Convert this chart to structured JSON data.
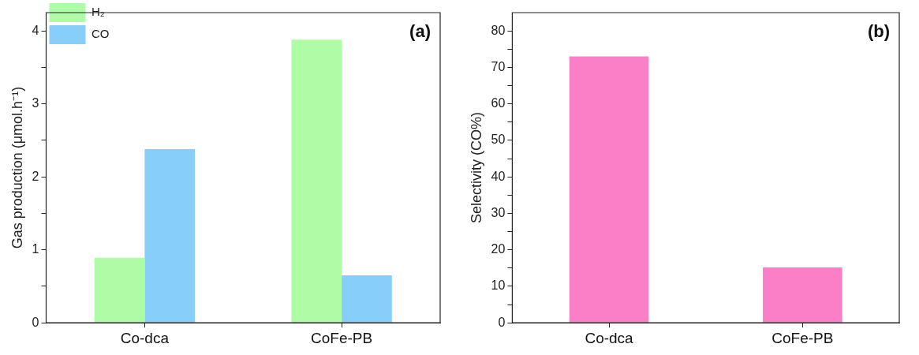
{
  "chart_data": [
    {
      "type": "bar",
      "categories": [
        "Co-dca",
        "CoFe-PB"
      ],
      "ylabel": "Gas production (μmol.h⁻¹)",
      "series": [
        {
          "name": "H₂",
          "color": "#aefca5",
          "values": [
            0.89,
            3.88
          ]
        },
        {
          "name": "CO",
          "color": "#87cefa",
          "values": [
            2.38,
            0.65
          ]
        }
      ],
      "ylim": [
        0,
        4.25
      ],
      "yticks": [
        0,
        {
          "value": 0.5,
          "label": null
        },
        1,
        {
          "value": 1.5,
          "label": null
        },
        2,
        {
          "value": 2.5,
          "label": null
        },
        3,
        {
          "value": 3.5,
          "label": null
        },
        4
      ],
      "legend": "top left",
      "annotations": [
        "(a)"
      ]
    },
    {
      "type": "bar",
      "categories": [
        "Co-dca",
        "CoFe-PB"
      ],
      "ylabel": "Selectivity (CO%)",
      "series": [
        {
          "color": "#fb7fc7",
          "values": [
            73,
            15.2
          ]
        }
      ],
      "ylim": [
        0,
        85
      ],
      "yticks": [
        0,
        {
          "value": 5,
          "label": null
        },
        10,
        {
          "value": 15,
          "label": null
        },
        20,
        {
          "value": 25,
          "label": null
        },
        30,
        {
          "value": 35,
          "label": null
        },
        40,
        {
          "value": 45,
          "label": null
        },
        50,
        {
          "value": 55,
          "label": null
        },
        60,
        {
          "value": 65,
          "label": null
        },
        70,
        {
          "value": 75,
          "label": null
        },
        80
      ],
      "annotations": [
        "(b)"
      ]
    }
  ]
}
